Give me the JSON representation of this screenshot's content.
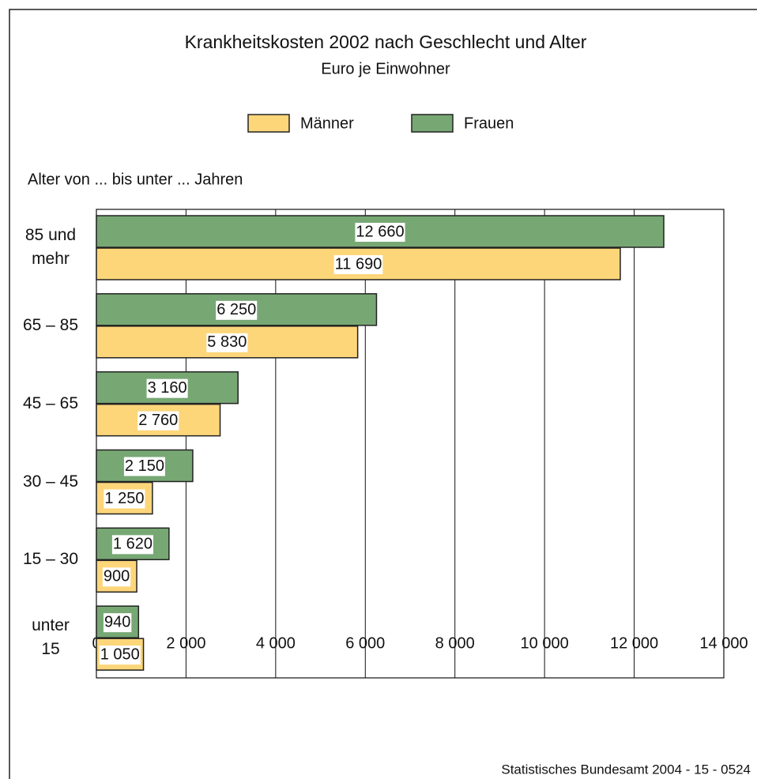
{
  "chart_data": {
    "type": "hbar",
    "title": "Krankheitskosten 2002 nach Geschlecht und Alter",
    "subtitle": "Euro je Einwohner",
    "y_label": "Alter von ... bis unter ... Jahren",
    "source": "Statistisches Bundesamt 2004 - 15 - 0524",
    "categories": [
      "85 und\nmehr",
      "65 – 85",
      "45 – 65",
      "30 – 45",
      "15 – 30",
      "unter\n15"
    ],
    "series": [
      {
        "name": "Männer",
        "color": "#fdd67a",
        "values": [
          11690,
          5830,
          2760,
          1250,
          900,
          1050
        ],
        "value_labels": [
          "11 690",
          "5 830",
          "2 760",
          "1 250",
          "900",
          "1 050"
        ]
      },
      {
        "name": "Frauen",
        "color": "#77a874",
        "values": [
          12660,
          6250,
          3160,
          2150,
          1620,
          940
        ],
        "value_labels": [
          "12 660",
          "6 250",
          "3 160",
          "2 150",
          "1 620",
          "940"
        ]
      }
    ],
    "xlim": [
      0,
      14000
    ],
    "xticks": [
      0,
      {
        "value": 2000,
        "label": "2 000"
      },
      {
        "value": 4000,
        "label": "4 000"
      },
      {
        "value": 6000,
        "label": "6 000"
      },
      {
        "value": 8000,
        "label": "8 000"
      },
      {
        "value": 10000,
        "label": "10 000"
      },
      {
        "value": 12000,
        "label": "12 000"
      },
      {
        "value": 14000,
        "label": "14 000"
      }
    ],
    "grid": true
  }
}
